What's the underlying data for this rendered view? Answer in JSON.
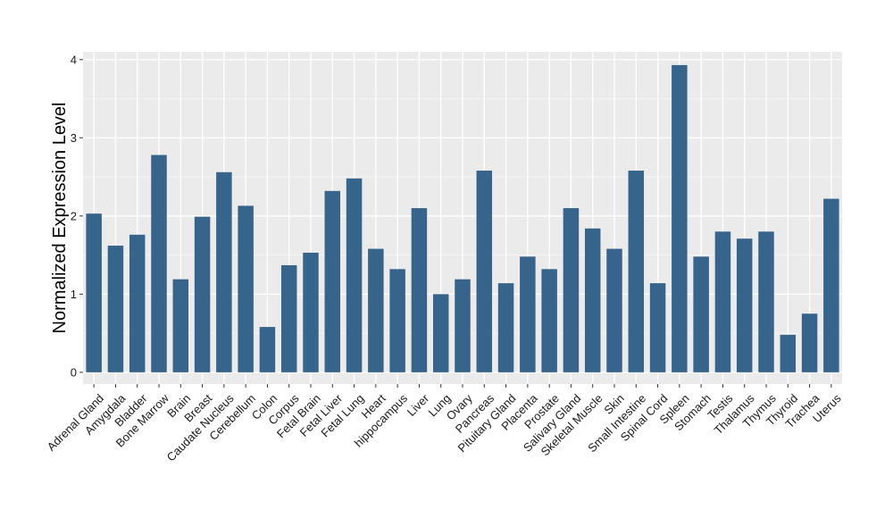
{
  "chart_data": {
    "type": "bar",
    "title": "",
    "xlabel": "",
    "ylabel": "Normalized Expression Level",
    "ylim": [
      -0.15,
      4.1
    ],
    "yticks": [
      0,
      1,
      2,
      3,
      4
    ],
    "grid": true,
    "legend": "none",
    "bar_color": "#36648b",
    "panel_color": "#ebebeb",
    "categories": [
      "Adrenal Gland",
      "Amygdala",
      "Bladder",
      "Bone Marrow",
      "Brain",
      "Breast",
      "Caudate Nucleus",
      "Cerebellum",
      "Colon",
      "Corpus",
      "Fetal Brain",
      "Fetal Liver",
      "Fetal Lung",
      "Heart",
      "hippocampus",
      "Liver",
      "Lung",
      "Ovary",
      "Pancreas",
      "Pituitary Gland",
      "Placenta",
      "Prostate",
      "Salivary Gland",
      "Skeletal Muscle",
      "Skin",
      "Small Intestine",
      "Spinal Cord",
      "Spleen",
      "Stomach",
      "Testis",
      "Thalamus",
      "Thymus",
      "Thyroid",
      "Trachea",
      "Uterus"
    ],
    "values": [
      2.03,
      1.62,
      1.76,
      2.78,
      1.19,
      1.99,
      2.56,
      2.13,
      0.58,
      1.37,
      1.53,
      2.32,
      2.48,
      1.58,
      1.32,
      2.1,
      1.0,
      1.19,
      2.58,
      1.14,
      1.48,
      1.32,
      2.1,
      1.84,
      1.58,
      2.58,
      1.14,
      3.93,
      1.48,
      1.8,
      1.71,
      1.8,
      0.48,
      0.75,
      2.22
    ]
  }
}
